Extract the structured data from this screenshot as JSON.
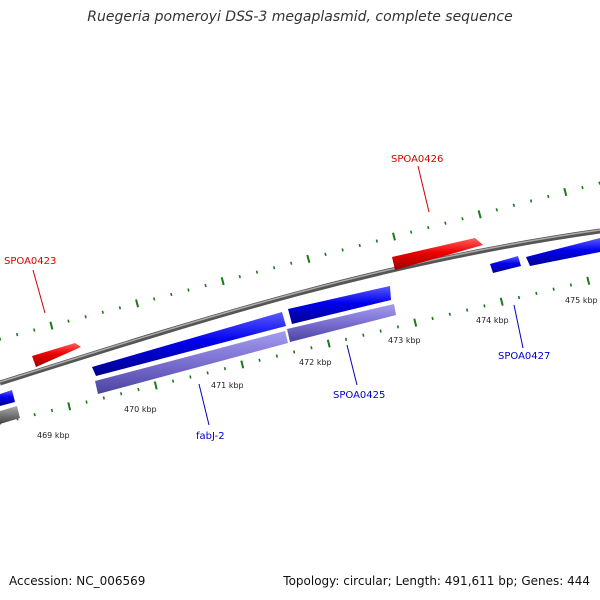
{
  "title": "Ruegeria pomeroyi DSS-3 megaplasmid, complete sequence",
  "footer": {
    "accession": "Accession: NC_006569",
    "summary": "Topology: circular; Length: 491,611 bp; Genes: 444"
  },
  "colors": {
    "forward_gene": "#0000dd",
    "reverse_gene": "#ee1111",
    "cds_light": "#7a6fd0",
    "backbone": "#888888",
    "tick": "#1a7a1a",
    "label_forward": "#0000cc",
    "label_reverse": "#dd0000"
  },
  "ticks": {
    "labels": [
      "469 kbp",
      "470 kbp",
      "471 kbp",
      "472 kbp",
      "473 kbp",
      "474 kbp",
      "475 kbp"
    ]
  },
  "genes": [
    {
      "name": "SPOA0423",
      "strand": "reverse"
    },
    {
      "name": "SPOA0426",
      "strand": "reverse"
    },
    {
      "name": "fabJ-2",
      "strand": "forward"
    },
    {
      "name": "SPOA0425",
      "strand": "forward"
    },
    {
      "name": "SPOA0427",
      "strand": "forward"
    }
  ]
}
